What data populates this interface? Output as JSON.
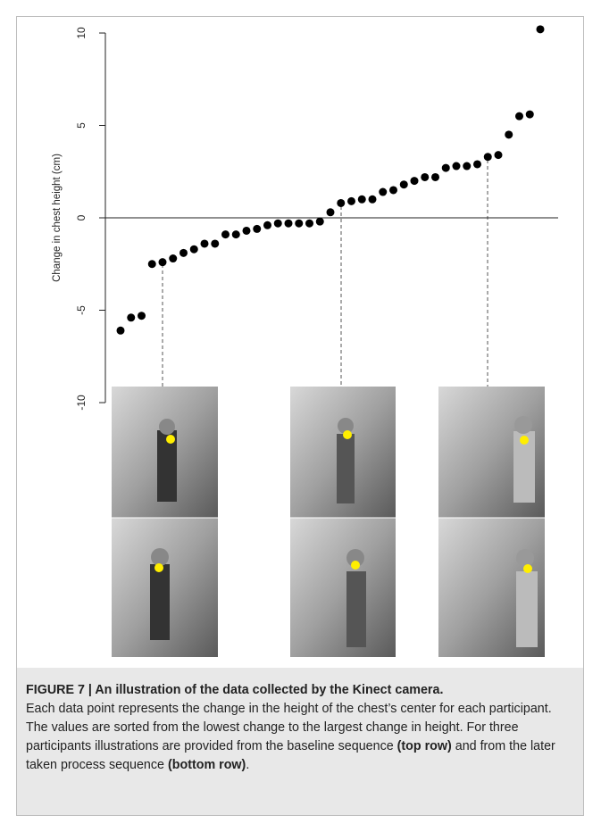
{
  "chart_data": {
    "type": "scatter",
    "y_label": "Change in chest height (cm)",
    "values": [
      -6.1,
      -5.4,
      -5.3,
      -2.5,
      -2.4,
      -2.2,
      -1.9,
      -1.7,
      -1.4,
      -1.4,
      -0.9,
      -0.9,
      -0.7,
      -0.6,
      -0.4,
      -0.3,
      -0.3,
      -0.3,
      -0.3,
      -0.2,
      0.3,
      0.8,
      0.9,
      1.0,
      1.0,
      1.4,
      1.5,
      1.8,
      2.0,
      2.2,
      2.2,
      2.7,
      2.8,
      2.8,
      2.9,
      3.3,
      3.4,
      4.5,
      5.5,
      5.6,
      10.2
    ],
    "color": "#000000",
    "ylim": [
      -10,
      10
    ],
    "yticks": [
      -10,
      -5,
      0,
      5,
      10
    ],
    "reference_line": 0
  },
  "caption": {
    "title": "FIGURE 7 | An illustration of the data collected by the Kinect camera.",
    "body": [
      "Each data point represents the change in the height of the chest’s center for each participant. The values are sorted from the lowest change to the largest change in height. For three participants illustrations are provided from the baseline sequence ",
      "(top row)",
      " and from the later taken process sequence ",
      "(bottom row)",
      "."
    ]
  }
}
